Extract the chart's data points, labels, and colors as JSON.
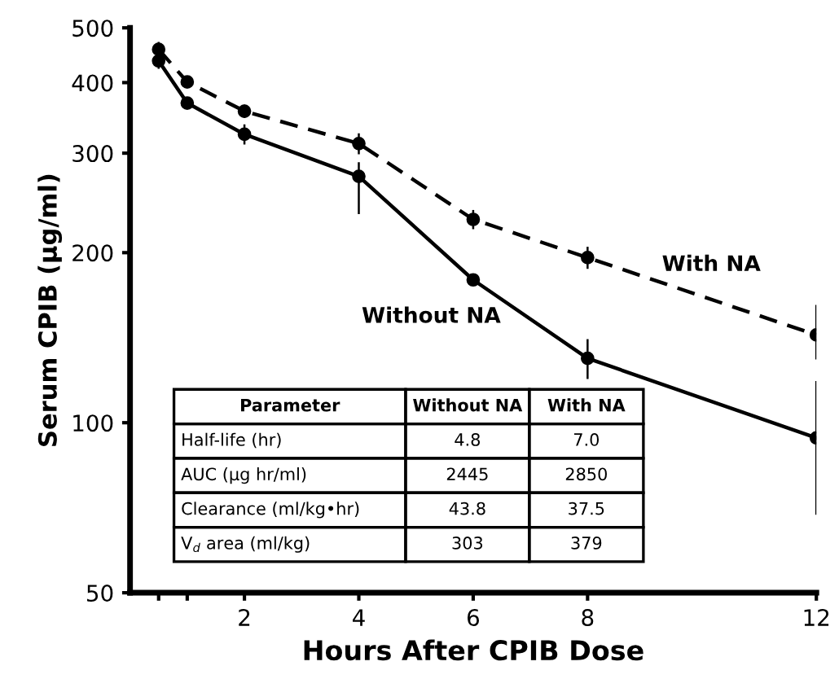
{
  "chart_data": {
    "type": "line",
    "xlabel": "Hours After CPIB Dose",
    "ylabel": "Serum CPIB (μg/ml)",
    "log": "y",
    "x": [
      0.5,
      1,
      2,
      4,
      6,
      8,
      12
    ],
    "series": [
      {
        "name": "Without NA",
        "color": "#000000",
        "line_style": "solid",
        "values": [
          437,
          368,
          324,
          273,
          179,
          130,
          94
        ],
        "errors": [
          12,
          null,
          12,
          [
            235,
            288
          ],
          null,
          10,
          [
            69,
            118
          ]
        ]
      },
      {
        "name": "With NA",
        "color": "#000000",
        "line_style": "dashed",
        "values": [
          458,
          401,
          356,
          312,
          229,
          196,
          143
        ],
        "errors": [
          12,
          null,
          8,
          12,
          8,
          8,
          [
            130,
            161
          ]
        ]
      }
    ],
    "marker": "circle",
    "legend": false,
    "grid": false,
    "xlim": [
      0,
      12
    ],
    "xticks": [
      {
        "value": 0.5,
        "label": null
      },
      {
        "value": 1,
        "label": null
      },
      2,
      4,
      6,
      8,
      12
    ],
    "ylim": [
      50,
      500
    ],
    "yticks": [
      50,
      100,
      200,
      300,
      400,
      500
    ],
    "annotations": [
      "Parameter",
      "Without NA",
      "With NA",
      "Half-life (hr)",
      "4.8",
      "7.0",
      "AUC (μg hr/ml)",
      "2445",
      "2850",
      "Clearance (ml/kg•hr)",
      "43.8",
      "37.5",
      "V$_{d}$ area (ml/kg)",
      "303",
      "379"
    ]
  }
}
